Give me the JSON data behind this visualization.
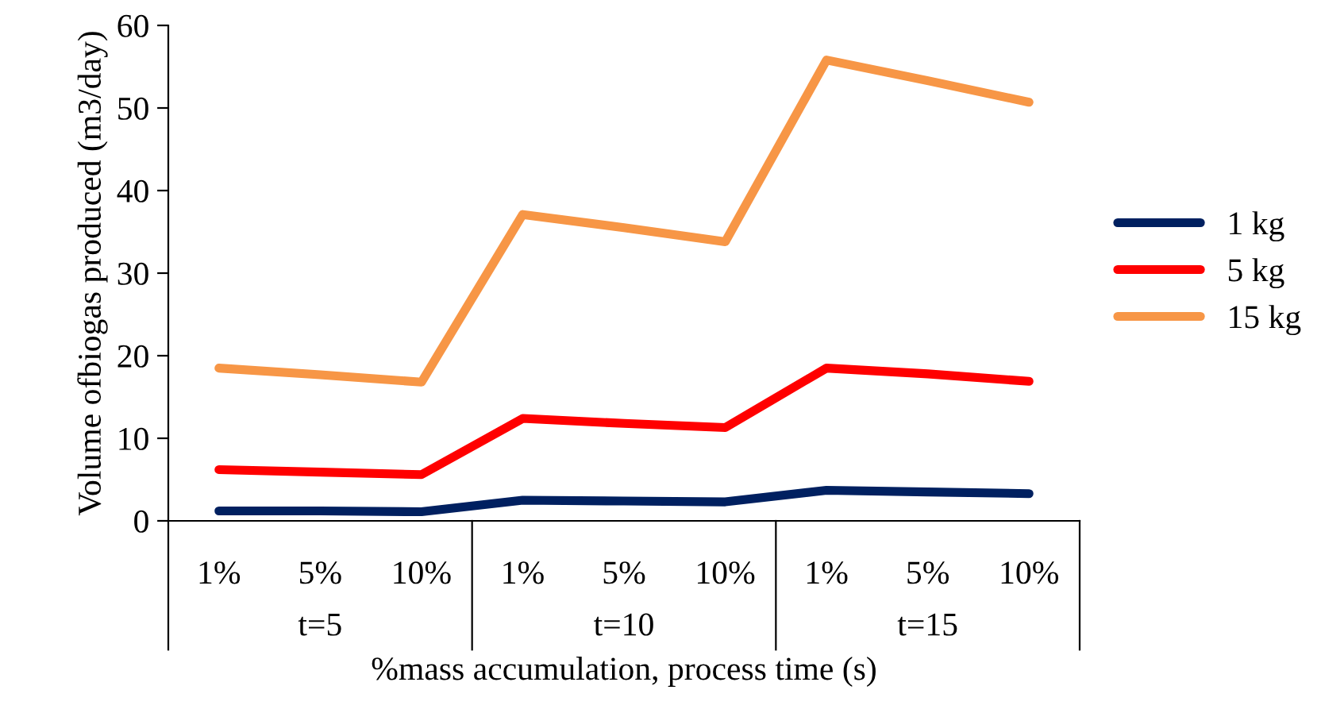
{
  "chart_data": {
    "type": "line",
    "ylabel": "Volume ofbiogas produced (m3/day)",
    "xlabel": "%mass accumulation, process time (s)",
    "categories": [
      "1%",
      "5%",
      "10%",
      "1%",
      "5%",
      "10%",
      "1%",
      "5%",
      "10%"
    ],
    "annotations": [
      "t=5",
      "t=10",
      "t=15"
    ],
    "series": [
      {
        "name": "1 kg",
        "color": "#002060",
        "values": [
          1.2,
          1.2,
          1.1,
          2.5,
          2.4,
          2.3,
          3.7,
          3.5,
          3.3
        ]
      },
      {
        "name": "5 kg",
        "color": "#ff0000",
        "values": [
          6.2,
          5.9,
          5.6,
          12.4,
          11.8,
          11.3,
          18.5,
          17.8,
          16.9
        ]
      },
      {
        "name": "15 kg",
        "color": "#f79646",
        "values": [
          18.5,
          17.7,
          16.8,
          37.1,
          35.5,
          33.8,
          55.8,
          53.3,
          50.7
        ]
      }
    ],
    "ylim": [
      0,
      60
    ],
    "yticks": [
      0,
      10,
      20,
      30,
      40,
      50,
      60
    ],
    "legend": "right",
    "grid": false,
    "marker": "none",
    "line_style": "solid"
  }
}
